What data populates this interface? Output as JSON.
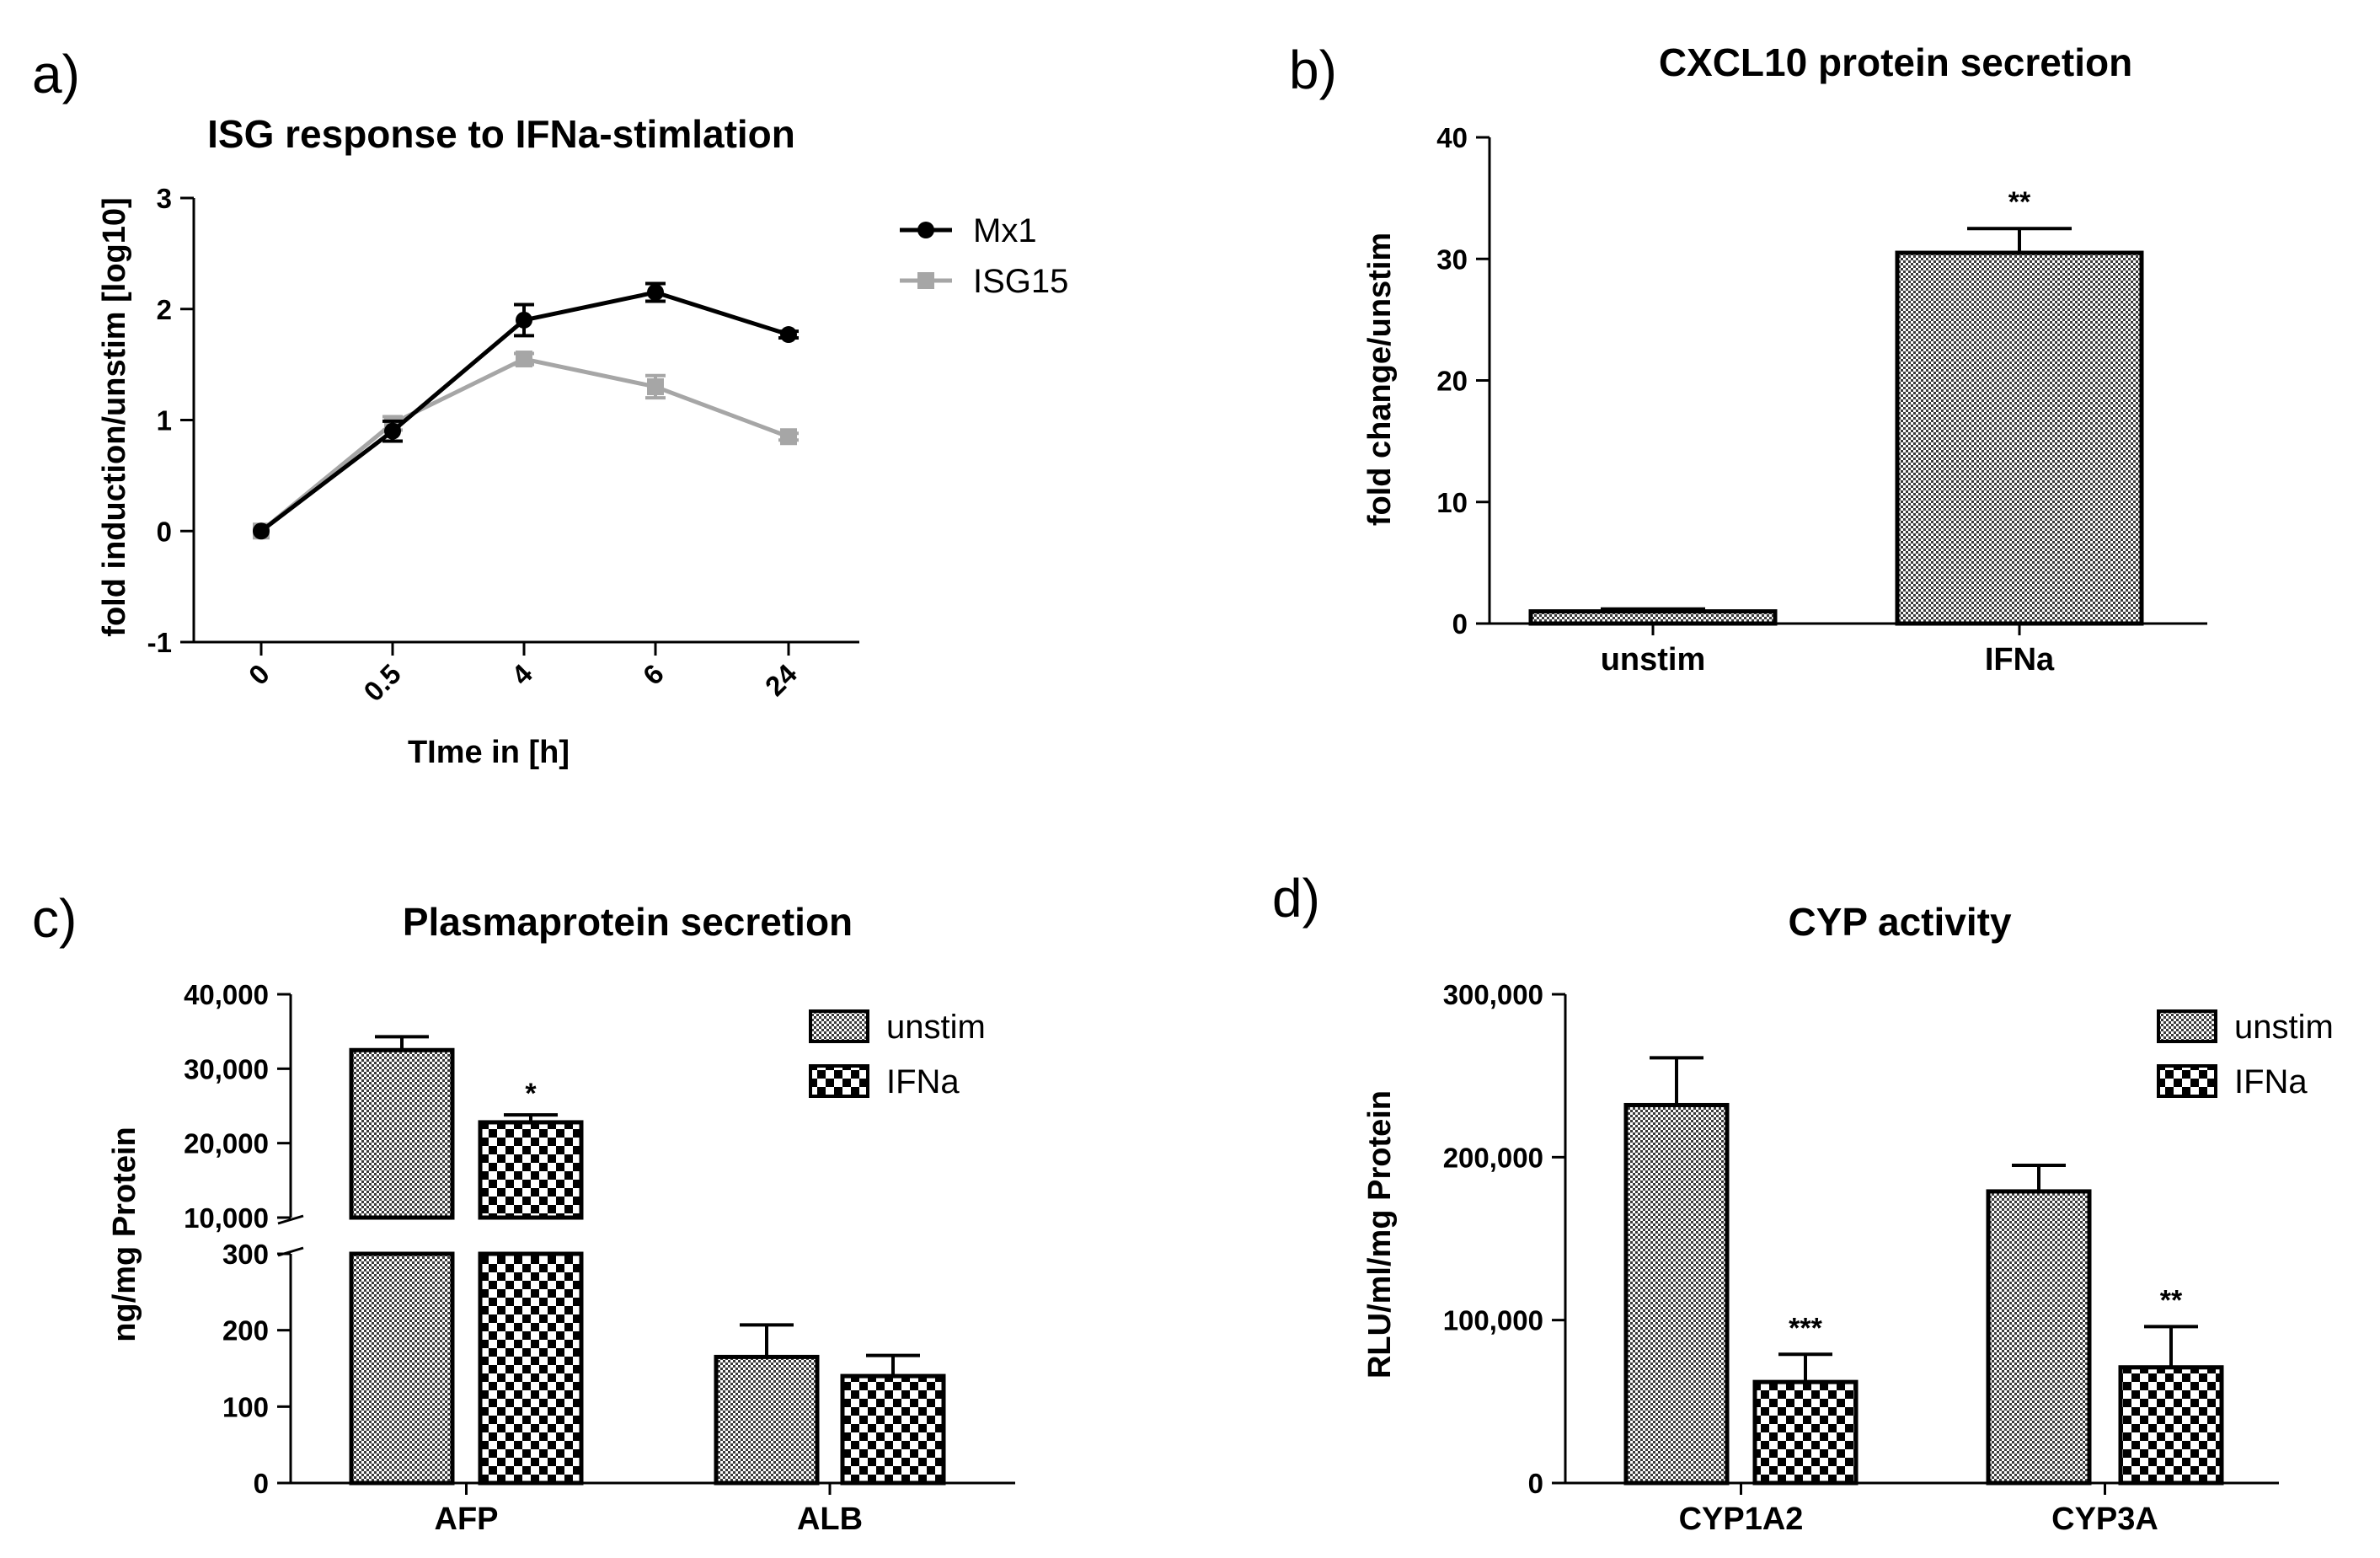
{
  "figure": {
    "panels": [
      "a)",
      "b)",
      "c)",
      "d)"
    ]
  },
  "chart_data": [
    {
      "id": "a",
      "type": "line",
      "title": "ISG response to IFNa-stimlation",
      "xlabel": "TIme in [h]",
      "ylabel": "fold induction/unstim [log10]",
      "categories": [
        "0",
        "0.5",
        "4",
        "6",
        "24"
      ],
      "ylim": [
        -1,
        3
      ],
      "yticks": [
        "-1",
        "0",
        "1",
        "2",
        "3"
      ],
      "yticks_values": [
        -1,
        0,
        1,
        2,
        3
      ],
      "series": [
        {
          "name": "Mx1",
          "color": "#000000",
          "marker": "circle",
          "values": [
            0,
            0.9,
            1.9,
            2.15,
            1.77
          ],
          "errors": [
            0,
            0.09,
            0.14,
            0.08,
            0.03
          ]
        },
        {
          "name": "ISG15",
          "color": "#a6a6a6",
          "marker": "square",
          "values": [
            0,
            0.97,
            1.55,
            1.3,
            0.85
          ],
          "errors": [
            0,
            0.06,
            0.05,
            0.1,
            0.03
          ]
        }
      ]
    },
    {
      "id": "b",
      "type": "bar",
      "title": "CXCL10 protein secretion",
      "xlabel": "",
      "ylabel": "fold change/unstim",
      "categories": [
        "unstim",
        "IFNa"
      ],
      "values": [
        1,
        30.5
      ],
      "errors": [
        0.2,
        2
      ],
      "significance": [
        "",
        "**"
      ],
      "ylim": [
        0,
        40
      ],
      "yticks": [
        "0",
        "10",
        "20",
        "30",
        "40"
      ],
      "yticks_values": [
        0,
        10,
        20,
        30,
        40
      ]
    },
    {
      "id": "c",
      "type": "bar",
      "title": "Plasmaprotein secretion",
      "xlabel": "",
      "ylabel": "ng/mg Protein",
      "categories": [
        "AFP",
        "ALB"
      ],
      "series": [
        {
          "name": "unstim",
          "pattern": "fine",
          "values": [
            32500,
            165
          ],
          "errors": [
            1800,
            42
          ]
        },
        {
          "name": "IFNa",
          "pattern": "coarse",
          "values": [
            22800,
            140
          ],
          "errors": [
            1000,
            27
          ]
        }
      ],
      "significance": [
        [
          "",
          "*"
        ],
        [
          "",
          ""
        ]
      ],
      "broken_axis": {
        "lower": [
          0,
          300
        ],
        "upper": [
          10000,
          40000
        ]
      },
      "yticks_lower": [
        "0",
        "100",
        "200",
        "300"
      ],
      "yticks_lower_values": [
        0,
        100,
        200,
        300
      ],
      "yticks_upper": [
        "10,000",
        "20,000",
        "30,000",
        "40,000"
      ],
      "yticks_upper_values": [
        10000,
        20000,
        30000,
        40000
      ]
    },
    {
      "id": "d",
      "type": "bar",
      "title": "CYP activity",
      "xlabel": "",
      "ylabel": "RLU/ml/mg Protein",
      "categories": [
        "CYP1A2",
        "CYP3A"
      ],
      "series": [
        {
          "name": "unstim",
          "pattern": "fine",
          "values": [
            232000,
            179000
          ],
          "errors": [
            29000,
            16000
          ]
        },
        {
          "name": "IFNa",
          "pattern": "coarse",
          "values": [
            62000,
            71000
          ],
          "errors": [
            17000,
            25000
          ]
        }
      ],
      "significance": [
        [
          "",
          "***"
        ],
        [
          "",
          "**"
        ]
      ],
      "ylim": [
        0,
        300000
      ],
      "yticks": [
        "0",
        "100,000",
        "200,000",
        "300,000"
      ],
      "yticks_values": [
        0,
        100000,
        200000,
        300000
      ]
    }
  ]
}
